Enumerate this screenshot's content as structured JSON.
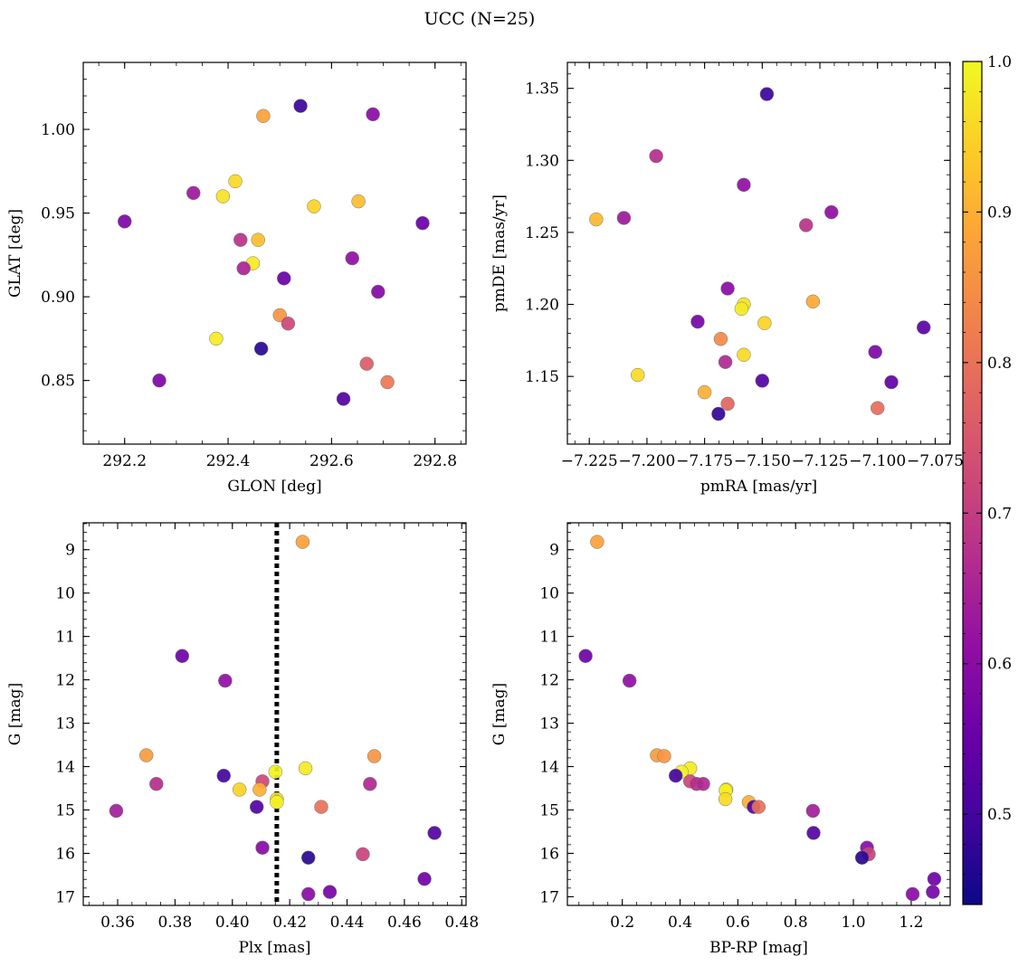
{
  "figure": {
    "title": "UCC (N=25)"
  },
  "colorbar": {
    "colormap": "plasma",
    "range": [
      0.44,
      1.0
    ],
    "ticks": [
      "0.5",
      "0.6",
      "0.7",
      "0.8",
      "0.9",
      "1.0"
    ],
    "tick_values": [
      0.5,
      0.6,
      0.7,
      0.8,
      0.9,
      1.0
    ]
  },
  "chart_data": [
    {
      "type": "scatter",
      "panel": "top-left",
      "xlabel": "GLON [deg]",
      "ylabel": "GLAT [deg]",
      "xlim": [
        292.12,
        292.86
      ],
      "ylim": [
        0.812,
        1.04
      ],
      "xticks": [
        "292.2",
        "292.4",
        "292.6",
        "292.8"
      ],
      "xtick_values": [
        292.2,
        292.4,
        292.6,
        292.8
      ],
      "yticks": [
        "0.85",
        "0.90",
        "0.95",
        "1.00"
      ],
      "ytick_values": [
        0.85,
        0.9,
        0.95,
        1.0
      ],
      "points": [
        {
          "x": 292.468,
          "y": 1.008,
          "c": 0.88
        },
        {
          "x": 292.54,
          "y": 1.014,
          "c": 0.49
        },
        {
          "x": 292.68,
          "y": 1.009,
          "c": 0.6
        },
        {
          "x": 292.414,
          "y": 0.969,
          "c": 0.96
        },
        {
          "x": 292.333,
          "y": 0.962,
          "c": 0.63
        },
        {
          "x": 292.39,
          "y": 0.96,
          "c": 0.97
        },
        {
          "x": 292.566,
          "y": 0.954,
          "c": 0.95
        },
        {
          "x": 292.652,
          "y": 0.957,
          "c": 0.92
        },
        {
          "x": 292.2,
          "y": 0.945,
          "c": 0.58
        },
        {
          "x": 292.776,
          "y": 0.944,
          "c": 0.55
        },
        {
          "x": 292.424,
          "y": 0.934,
          "c": 0.68
        },
        {
          "x": 292.458,
          "y": 0.934,
          "c": 0.92
        },
        {
          "x": 292.448,
          "y": 0.92,
          "c": 0.98
        },
        {
          "x": 292.43,
          "y": 0.917,
          "c": 0.65
        },
        {
          "x": 292.64,
          "y": 0.923,
          "c": 0.61
        },
        {
          "x": 292.508,
          "y": 0.911,
          "c": 0.55
        },
        {
          "x": 292.69,
          "y": 0.903,
          "c": 0.59
        },
        {
          "x": 292.5,
          "y": 0.889,
          "c": 0.86
        },
        {
          "x": 292.516,
          "y": 0.884,
          "c": 0.72
        },
        {
          "x": 292.377,
          "y": 0.875,
          "c": 0.98
        },
        {
          "x": 292.464,
          "y": 0.869,
          "c": 0.47
        },
        {
          "x": 292.668,
          "y": 0.86,
          "c": 0.76
        },
        {
          "x": 292.267,
          "y": 0.85,
          "c": 0.58
        },
        {
          "x": 292.708,
          "y": 0.849,
          "c": 0.81
        },
        {
          "x": 292.623,
          "y": 0.839,
          "c": 0.52
        }
      ]
    },
    {
      "type": "scatter",
      "panel": "top-right",
      "xlabel": "pmRA [mas/yr]",
      "ylabel": "pmDE [mas/yr]",
      "xlim": [
        -7.2345,
        -7.0685
      ],
      "ylim": [
        1.103,
        1.368
      ],
      "xticks": [
        "−7.225",
        "−7.200",
        "−7.175",
        "−7.150",
        "−7.125",
        "−7.100",
        "−7.075"
      ],
      "xtick_values": [
        -7.225,
        -7.2,
        -7.175,
        -7.15,
        -7.125,
        -7.1,
        -7.075
      ],
      "yticks": [
        "1.15",
        "1.20",
        "1.25",
        "1.30",
        "1.35"
      ],
      "ytick_values": [
        1.15,
        1.2,
        1.25,
        1.3,
        1.35
      ],
      "points": [
        {
          "x": -7.148,
          "y": 1.346,
          "c": 0.49
        },
        {
          "x": -7.196,
          "y": 1.303,
          "c": 0.67
        },
        {
          "x": -7.158,
          "y": 1.283,
          "c": 0.61
        },
        {
          "x": -7.222,
          "y": 1.259,
          "c": 0.91
        },
        {
          "x": -7.21,
          "y": 1.26,
          "c": 0.63
        },
        {
          "x": -7.12,
          "y": 1.264,
          "c": 0.61
        },
        {
          "x": -7.131,
          "y": 1.255,
          "c": 0.68
        },
        {
          "x": -7.165,
          "y": 1.211,
          "c": 0.6
        },
        {
          "x": -7.158,
          "y": 1.2,
          "c": 0.97
        },
        {
          "x": -7.128,
          "y": 1.202,
          "c": 0.89
        },
        {
          "x": -7.159,
          "y": 1.197,
          "c": 0.98
        },
        {
          "x": -7.149,
          "y": 1.187,
          "c": 0.95
        },
        {
          "x": -7.178,
          "y": 1.188,
          "c": 0.57
        },
        {
          "x": -7.08,
          "y": 1.184,
          "c": 0.53
        },
        {
          "x": -7.168,
          "y": 1.176,
          "c": 0.84
        },
        {
          "x": -7.101,
          "y": 1.167,
          "c": 0.58
        },
        {
          "x": -7.158,
          "y": 1.165,
          "c": 0.96
        },
        {
          "x": -7.166,
          "y": 1.16,
          "c": 0.66
        },
        {
          "x": -7.204,
          "y": 1.151,
          "c": 0.96
        },
        {
          "x": -7.15,
          "y": 1.147,
          "c": 0.52
        },
        {
          "x": -7.094,
          "y": 1.146,
          "c": 0.54
        },
        {
          "x": -7.175,
          "y": 1.139,
          "c": 0.9
        },
        {
          "x": -7.165,
          "y": 1.131,
          "c": 0.78
        },
        {
          "x": -7.1,
          "y": 1.128,
          "c": 0.79
        },
        {
          "x": -7.169,
          "y": 1.124,
          "c": 0.48
        }
      ]
    },
    {
      "type": "scatter",
      "panel": "bottom-left",
      "xlabel": "Plx [mas]",
      "ylabel": "G [mag]",
      "xlim": [
        0.348,
        0.4815
      ],
      "ylim": [
        17.2,
        8.38
      ],
      "y_inverted": true,
      "xticks": [
        "0.36",
        "0.38",
        "0.40",
        "0.42",
        "0.44",
        "0.46",
        "0.48"
      ],
      "xtick_values": [
        0.36,
        0.38,
        0.4,
        0.42,
        0.44,
        0.46,
        0.48
      ],
      "yticks": [
        "9",
        "10",
        "11",
        "12",
        "13",
        "14",
        "15",
        "16",
        "17"
      ],
      "ytick_values": [
        9,
        10,
        11,
        12,
        13,
        14,
        15,
        16,
        17
      ],
      "vline": {
        "x": 0.4155,
        "style": "dotted",
        "color": "#000000"
      },
      "points": [
        {
          "x": 0.4245,
          "y": 8.82,
          "c": 0.88
        },
        {
          "x": 0.3825,
          "y": 11.45,
          "c": 0.56
        },
        {
          "x": 0.3975,
          "y": 12.02,
          "c": 0.61
        },
        {
          "x": 0.37,
          "y": 13.74,
          "c": 0.87
        },
        {
          "x": 0.4495,
          "y": 13.76,
          "c": 0.86
        },
        {
          "x": 0.4255,
          "y": 14.04,
          "c": 0.98
        },
        {
          "x": 0.415,
          "y": 14.12,
          "c": 0.99
        },
        {
          "x": 0.397,
          "y": 14.21,
          "c": 0.5
        },
        {
          "x": 0.4105,
          "y": 14.34,
          "c": 0.72
        },
        {
          "x": 0.3735,
          "y": 14.4,
          "c": 0.67
        },
        {
          "x": 0.448,
          "y": 14.4,
          "c": 0.66
        },
        {
          "x": 0.4025,
          "y": 14.53,
          "c": 0.95
        },
        {
          "x": 0.4095,
          "y": 14.53,
          "c": 0.9
        },
        {
          "x": 0.4155,
          "y": 14.75,
          "c": 0.96
        },
        {
          "x": 0.4155,
          "y": 14.82,
          "c": 0.99
        },
        {
          "x": 0.4085,
          "y": 14.93,
          "c": 0.52
        },
        {
          "x": 0.431,
          "y": 14.93,
          "c": 0.8
        },
        {
          "x": 0.3595,
          "y": 15.02,
          "c": 0.64
        },
        {
          "x": 0.4705,
          "y": 15.53,
          "c": 0.52
        },
        {
          "x": 0.4105,
          "y": 15.87,
          "c": 0.6
        },
        {
          "x": 0.4455,
          "y": 16.02,
          "c": 0.71
        },
        {
          "x": 0.4265,
          "y": 16.1,
          "c": 0.47
        },
        {
          "x": 0.467,
          "y": 16.59,
          "c": 0.56
        },
        {
          "x": 0.434,
          "y": 16.89,
          "c": 0.57
        },
        {
          "x": 0.4265,
          "y": 16.94,
          "c": 0.6
        }
      ]
    },
    {
      "type": "scatter",
      "panel": "bottom-right",
      "xlabel": "BP-RP [mag]",
      "ylabel": "G [mag]",
      "xlim": [
        0.01,
        1.335
      ],
      "ylim": [
        17.2,
        8.38
      ],
      "y_inverted": true,
      "xticks": [
        "0.2",
        "0.4",
        "0.6",
        "0.8",
        "1.0",
        "1.2"
      ],
      "xtick_values": [
        0.2,
        0.4,
        0.6,
        0.8,
        1.0,
        1.2
      ],
      "yticks": [
        "9",
        "10",
        "11",
        "12",
        "13",
        "14",
        "15",
        "16",
        "17"
      ],
      "ytick_values": [
        9,
        10,
        11,
        12,
        13,
        14,
        15,
        16,
        17
      ],
      "points": [
        {
          "x": 0.113,
          "y": 8.82,
          "c": 0.88
        },
        {
          "x": 0.073,
          "y": 11.45,
          "c": 0.56
        },
        {
          "x": 0.225,
          "y": 12.02,
          "c": 0.61
        },
        {
          "x": 0.32,
          "y": 13.74,
          "c": 0.87
        },
        {
          "x": 0.345,
          "y": 13.76,
          "c": 0.86
        },
        {
          "x": 0.435,
          "y": 14.04,
          "c": 0.98
        },
        {
          "x": 0.405,
          "y": 14.12,
          "c": 0.99
        },
        {
          "x": 0.385,
          "y": 14.21,
          "c": 0.5
        },
        {
          "x": 0.435,
          "y": 14.34,
          "c": 0.72
        },
        {
          "x": 0.457,
          "y": 14.4,
          "c": 0.67
        },
        {
          "x": 0.48,
          "y": 14.4,
          "c": 0.66
        },
        {
          "x": 0.56,
          "y": 14.53,
          "c": 0.95
        },
        {
          "x": 0.558,
          "y": 14.55,
          "c": 0.99
        },
        {
          "x": 0.557,
          "y": 14.75,
          "c": 0.96
        },
        {
          "x": 0.638,
          "y": 14.82,
          "c": 0.9
        },
        {
          "x": 0.655,
          "y": 14.93,
          "c": 0.52
        },
        {
          "x": 0.672,
          "y": 14.93,
          "c": 0.8
        },
        {
          "x": 0.86,
          "y": 15.02,
          "c": 0.64
        },
        {
          "x": 0.862,
          "y": 15.53,
          "c": 0.52
        },
        {
          "x": 1.047,
          "y": 15.87,
          "c": 0.6
        },
        {
          "x": 1.053,
          "y": 16.02,
          "c": 0.71
        },
        {
          "x": 1.03,
          "y": 16.1,
          "c": 0.47
        },
        {
          "x": 1.28,
          "y": 16.59,
          "c": 0.56
        },
        {
          "x": 1.275,
          "y": 16.89,
          "c": 0.57
        },
        {
          "x": 1.205,
          "y": 16.94,
          "c": 0.6
        }
      ]
    }
  ]
}
